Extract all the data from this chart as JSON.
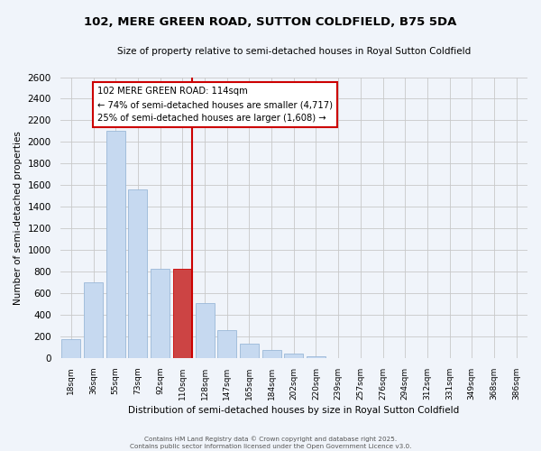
{
  "title": "102, MERE GREEN ROAD, SUTTON COLDFIELD, B75 5DA",
  "subtitle": "Size of property relative to semi-detached houses in Royal Sutton Coldfield",
  "xlabel": "Distribution of semi-detached houses by size in Royal Sutton Coldfield",
  "ylabel": "Number of semi-detached properties",
  "bar_labels": [
    "18sqm",
    "36sqm",
    "55sqm",
    "73sqm",
    "92sqm",
    "110sqm",
    "128sqm",
    "147sqm",
    "165sqm",
    "184sqm",
    "202sqm",
    "220sqm",
    "239sqm",
    "257sqm",
    "276sqm",
    "294sqm",
    "312sqm",
    "331sqm",
    "349sqm",
    "368sqm",
    "386sqm"
  ],
  "bar_values": [
    175,
    700,
    2100,
    1560,
    830,
    830,
    510,
    255,
    130,
    75,
    40,
    20,
    0,
    0,
    0,
    0,
    0,
    0,
    0,
    0,
    0
  ],
  "bar_color": "#c6d9f0",
  "bar_edge_color": "#9ab8d8",
  "highlight_bar_index": 5,
  "highlight_color": "#cc4444",
  "highlight_edge_color": "#cc0000",
  "vline_color": "#cc0000",
  "ylim": [
    0,
    2600
  ],
  "yticks": [
    0,
    200,
    400,
    600,
    800,
    1000,
    1200,
    1400,
    1600,
    1800,
    2000,
    2200,
    2400,
    2600
  ],
  "annotation_title": "102 MERE GREEN ROAD: 114sqm",
  "annotation_line1": "← 74% of semi-detached houses are smaller (4,717)",
  "annotation_line2": "25% of semi-detached houses are larger (1,608) →",
  "annotation_box_color": "white",
  "annotation_box_edge": "#cc0000",
  "footer1": "Contains HM Land Registry data © Crown copyright and database right 2025.",
  "footer2": "Contains public sector information licensed under the Open Government Licence v3.0.",
  "background_color": "#f0f4fa",
  "grid_color": "#c8c8c8"
}
